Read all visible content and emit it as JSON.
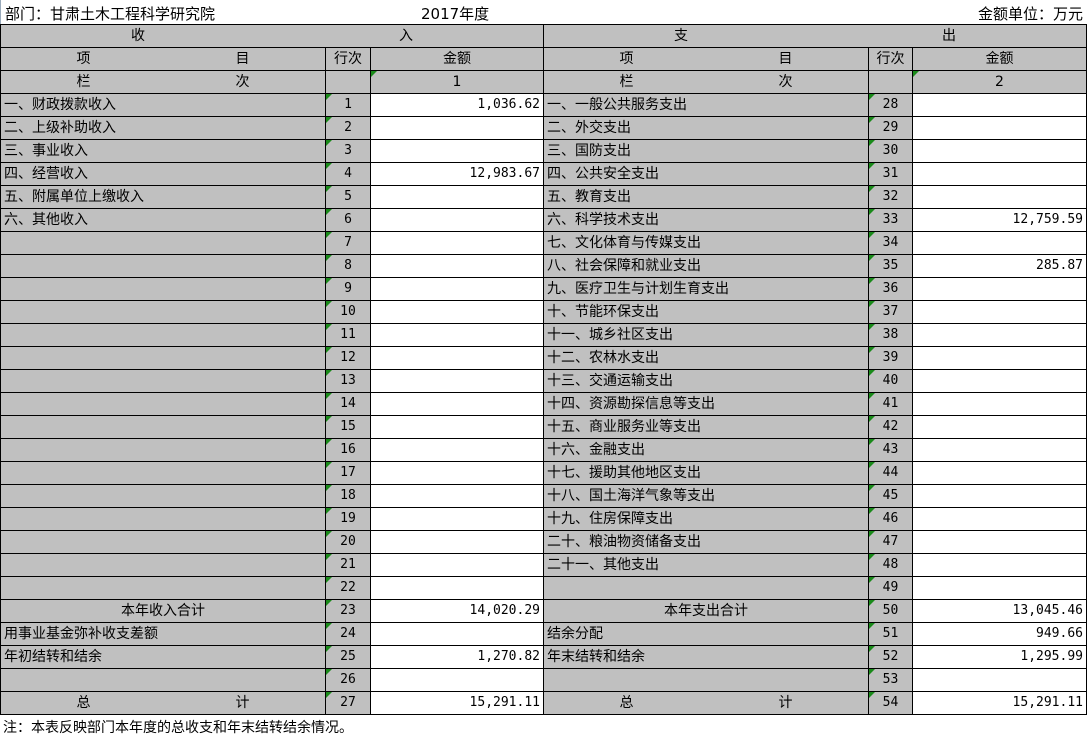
{
  "header": {
    "department": "部门：甘肃土木工程科学研究院",
    "year": "2017年度",
    "unit": "金额单位：万元"
  },
  "sections": {
    "income": [
      "收",
      "入"
    ],
    "expense": [
      "支",
      "出"
    ]
  },
  "columns": {
    "item": [
      "项",
      "目"
    ],
    "row_no": "行次",
    "amount": "金额",
    "lanci": [
      "栏",
      "次"
    ],
    "income_col": "1",
    "expense_col": "2"
  },
  "rows": [
    {
      "l": "一、财政拨款收入",
      "ln": "1",
      "la": "1,036.62",
      "r": "一、一般公共服务支出",
      "rn": "28",
      "ra": ""
    },
    {
      "l": "二、上级补助收入",
      "ln": "2",
      "la": "",
      "r": "二、外交支出",
      "rn": "29",
      "ra": ""
    },
    {
      "l": "三、事业收入",
      "ln": "3",
      "la": "",
      "r": "三、国防支出",
      "rn": "30",
      "ra": ""
    },
    {
      "l": "四、经营收入",
      "ln": "4",
      "la": "12,983.67",
      "r": "四、公共安全支出",
      "rn": "31",
      "ra": ""
    },
    {
      "l": "五、附属单位上缴收入",
      "ln": "5",
      "la": "",
      "r": "五、教育支出",
      "rn": "32",
      "ra": ""
    },
    {
      "l": "六、其他收入",
      "ln": "6",
      "la": "",
      "r": "六、科学技术支出",
      "rn": "33",
      "ra": "12,759.59"
    },
    {
      "l": "",
      "ln": "7",
      "la": "",
      "r": "七、文化体育与传媒支出",
      "rn": "34",
      "ra": ""
    },
    {
      "l": "",
      "ln": "8",
      "la": "",
      "r": "八、社会保障和就业支出",
      "rn": "35",
      "ra": "285.87"
    },
    {
      "l": "",
      "ln": "9",
      "la": "",
      "r": "九、医疗卫生与计划生育支出",
      "rn": "36",
      "ra": ""
    },
    {
      "l": "",
      "ln": "10",
      "la": "",
      "r": "十、节能环保支出",
      "rn": "37",
      "ra": ""
    },
    {
      "l": "",
      "ln": "11",
      "la": "",
      "r": "十一、城乡社区支出",
      "rn": "38",
      "ra": ""
    },
    {
      "l": "",
      "ln": "12",
      "la": "",
      "r": "十二、农林水支出",
      "rn": "39",
      "ra": ""
    },
    {
      "l": "",
      "ln": "13",
      "la": "",
      "r": "十三、交通运输支出",
      "rn": "40",
      "ra": ""
    },
    {
      "l": "",
      "ln": "14",
      "la": "",
      "r": "十四、资源勘探信息等支出",
      "rn": "41",
      "ra": ""
    },
    {
      "l": "",
      "ln": "15",
      "la": "",
      "r": "十五、商业服务业等支出",
      "rn": "42",
      "ra": ""
    },
    {
      "l": "",
      "ln": "16",
      "la": "",
      "r": "十六、金融支出",
      "rn": "43",
      "ra": ""
    },
    {
      "l": "",
      "ln": "17",
      "la": "",
      "r": "十七、援助其他地区支出",
      "rn": "44",
      "ra": ""
    },
    {
      "l": "",
      "ln": "18",
      "la": "",
      "r": "十八、国土海洋气象等支出",
      "rn": "45",
      "ra": ""
    },
    {
      "l": "",
      "ln": "19",
      "la": "",
      "r": "十九、住房保障支出",
      "rn": "46",
      "ra": ""
    },
    {
      "l": "",
      "ln": "20",
      "la": "",
      "r": "二十、粮油物资储备支出",
      "rn": "47",
      "ra": ""
    },
    {
      "l": "",
      "ln": "21",
      "la": "",
      "r": "二十一、其他支出",
      "rn": "48",
      "ra": ""
    },
    {
      "l": "",
      "ln": "22",
      "la": "",
      "r": "",
      "rn": "49",
      "ra": ""
    },
    {
      "l": "本年收入合计",
      "ln": "23",
      "la": "14,020.29",
      "r": "本年支出合计",
      "rn": "50",
      "ra": "13,045.46",
      "center": true
    },
    {
      "l": "用事业基金弥补收支差额",
      "ln": "24",
      "la": "",
      "r": "结余分配",
      "rn": "51",
      "ra": "949.66"
    },
    {
      "l": "年初结转和结余",
      "ln": "25",
      "la": "1,270.82",
      "r": "年末结转和结余",
      "rn": "52",
      "ra": "1,295.99"
    },
    {
      "l": "",
      "ln": "26",
      "la": "",
      "r": "",
      "rn": "53",
      "ra": ""
    }
  ],
  "total": {
    "label": [
      "总",
      "计"
    ],
    "ln": "27",
    "la": "15,291.11",
    "rn": "54",
    "ra": "15,291.11"
  },
  "note": "注：本表反映部门本年度的总收支和年末结转结余情况。",
  "colors": {
    "header_gray": "#c0c0c0",
    "marker_green": "#1a8a1a"
  }
}
